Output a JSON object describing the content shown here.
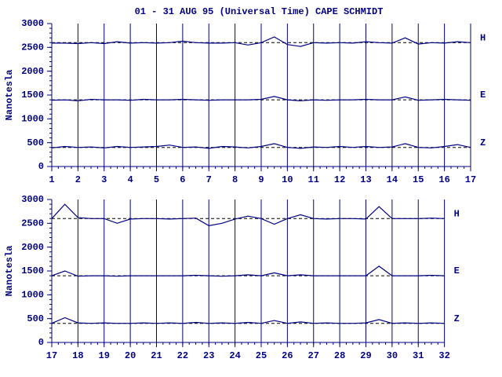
{
  "chart_data": [
    {
      "type": "line",
      "title": "01 - 31 AUG 95 (Universal Time) CAPE SCHMIDT",
      "y_label": "Nanotesla",
      "x": [
        1,
        1.5,
        2,
        2.5,
        3,
        3.5,
        4,
        4.5,
        5,
        5.5,
        6,
        6.5,
        7,
        7.5,
        8,
        8.5,
        9,
        9.5,
        10,
        10.5,
        11,
        11.5,
        12,
        12.5,
        13,
        13.5,
        14,
        14.5,
        15,
        15.5,
        16,
        16.5,
        17
      ],
      "series": [
        {
          "name": "H",
          "color": "#000080",
          "values": [
            2590,
            2590,
            2580,
            2600,
            2580,
            2620,
            2590,
            2600,
            2590,
            2600,
            2630,
            2600,
            2590,
            2590,
            2600,
            2550,
            2600,
            2720,
            2560,
            2520,
            2600,
            2590,
            2600,
            2590,
            2620,
            2600,
            2590,
            2700,
            2570,
            2600,
            2590,
            2620,
            2600
          ]
        },
        {
          "name": "E",
          "color": "#000080",
          "values": [
            1390,
            1400,
            1380,
            1410,
            1400,
            1400,
            1390,
            1410,
            1400,
            1400,
            1410,
            1400,
            1390,
            1400,
            1400,
            1400,
            1410,
            1470,
            1400,
            1380,
            1400,
            1390,
            1400,
            1400,
            1410,
            1400,
            1400,
            1460,
            1390,
            1400,
            1410,
            1400,
            1390
          ]
        },
        {
          "name": "Z",
          "color": "#000080",
          "values": [
            390,
            420,
            400,
            410,
            390,
            420,
            400,
            410,
            420,
            450,
            400,
            410,
            380,
            420,
            410,
            390,
            420,
            480,
            400,
            380,
            410,
            400,
            420,
            400,
            420,
            400,
            410,
            480,
            400,
            390,
            420,
            460,
            400
          ]
        }
      ],
      "reference_lines": [
        2600,
        1400,
        400
      ],
      "xlim": [
        1,
        17
      ],
      "xticks": [
        1,
        2,
        3,
        4,
        5,
        6,
        7,
        8,
        9,
        10,
        11,
        12,
        13,
        14,
        15,
        16,
        17
      ],
      "ylim": [
        0,
        3000
      ],
      "yticks": [
        0,
        500,
        1000,
        1500,
        2000,
        2500,
        3000
      ],
      "grid": true
    },
    {
      "type": "line",
      "y_label": "Nanotesla",
      "x": [
        17,
        17.5,
        18,
        18.5,
        19,
        19.5,
        20,
        20.5,
        21,
        21.5,
        22,
        22.5,
        23,
        23.5,
        24,
        24.5,
        25,
        25.5,
        26,
        26.5,
        27,
        27.5,
        28,
        28.5,
        29,
        29.5,
        30,
        30.5,
        31,
        31.5,
        32
      ],
      "series": [
        {
          "name": "H",
          "color": "#000080",
          "values": [
            2600,
            2900,
            2620,
            2600,
            2600,
            2500,
            2590,
            2600,
            2600,
            2590,
            2600,
            2610,
            2450,
            2500,
            2590,
            2650,
            2600,
            2480,
            2600,
            2680,
            2600,
            2590,
            2600,
            2600,
            2590,
            2850,
            2600,
            2600,
            2600,
            2610,
            2600
          ]
        },
        {
          "name": "E",
          "color": "#000080",
          "values": [
            1400,
            1500,
            1390,
            1400,
            1400,
            1390,
            1400,
            1400,
            1400,
            1400,
            1400,
            1410,
            1400,
            1390,
            1400,
            1420,
            1400,
            1460,
            1400,
            1420,
            1400,
            1400,
            1400,
            1400,
            1400,
            1600,
            1400,
            1400,
            1400,
            1410,
            1400
          ]
        },
        {
          "name": "Z",
          "color": "#000080",
          "values": [
            400,
            520,
            410,
            400,
            410,
            400,
            400,
            410,
            400,
            410,
            400,
            420,
            400,
            410,
            400,
            420,
            400,
            460,
            400,
            430,
            400,
            410,
            400,
            400,
            410,
            480,
            400,
            410,
            400,
            410,
            400
          ]
        }
      ],
      "reference_lines": [
        2600,
        1400,
        400
      ],
      "xlim": [
        17,
        32
      ],
      "xticks": [
        17,
        18,
        19,
        20,
        21,
        22,
        23,
        24,
        25,
        26,
        27,
        28,
        29,
        30,
        31,
        32
      ],
      "ylim": [
        0,
        3000
      ],
      "yticks": [
        0,
        500,
        1000,
        1500,
        2000,
        2500,
        3000
      ],
      "grid": true
    }
  ]
}
